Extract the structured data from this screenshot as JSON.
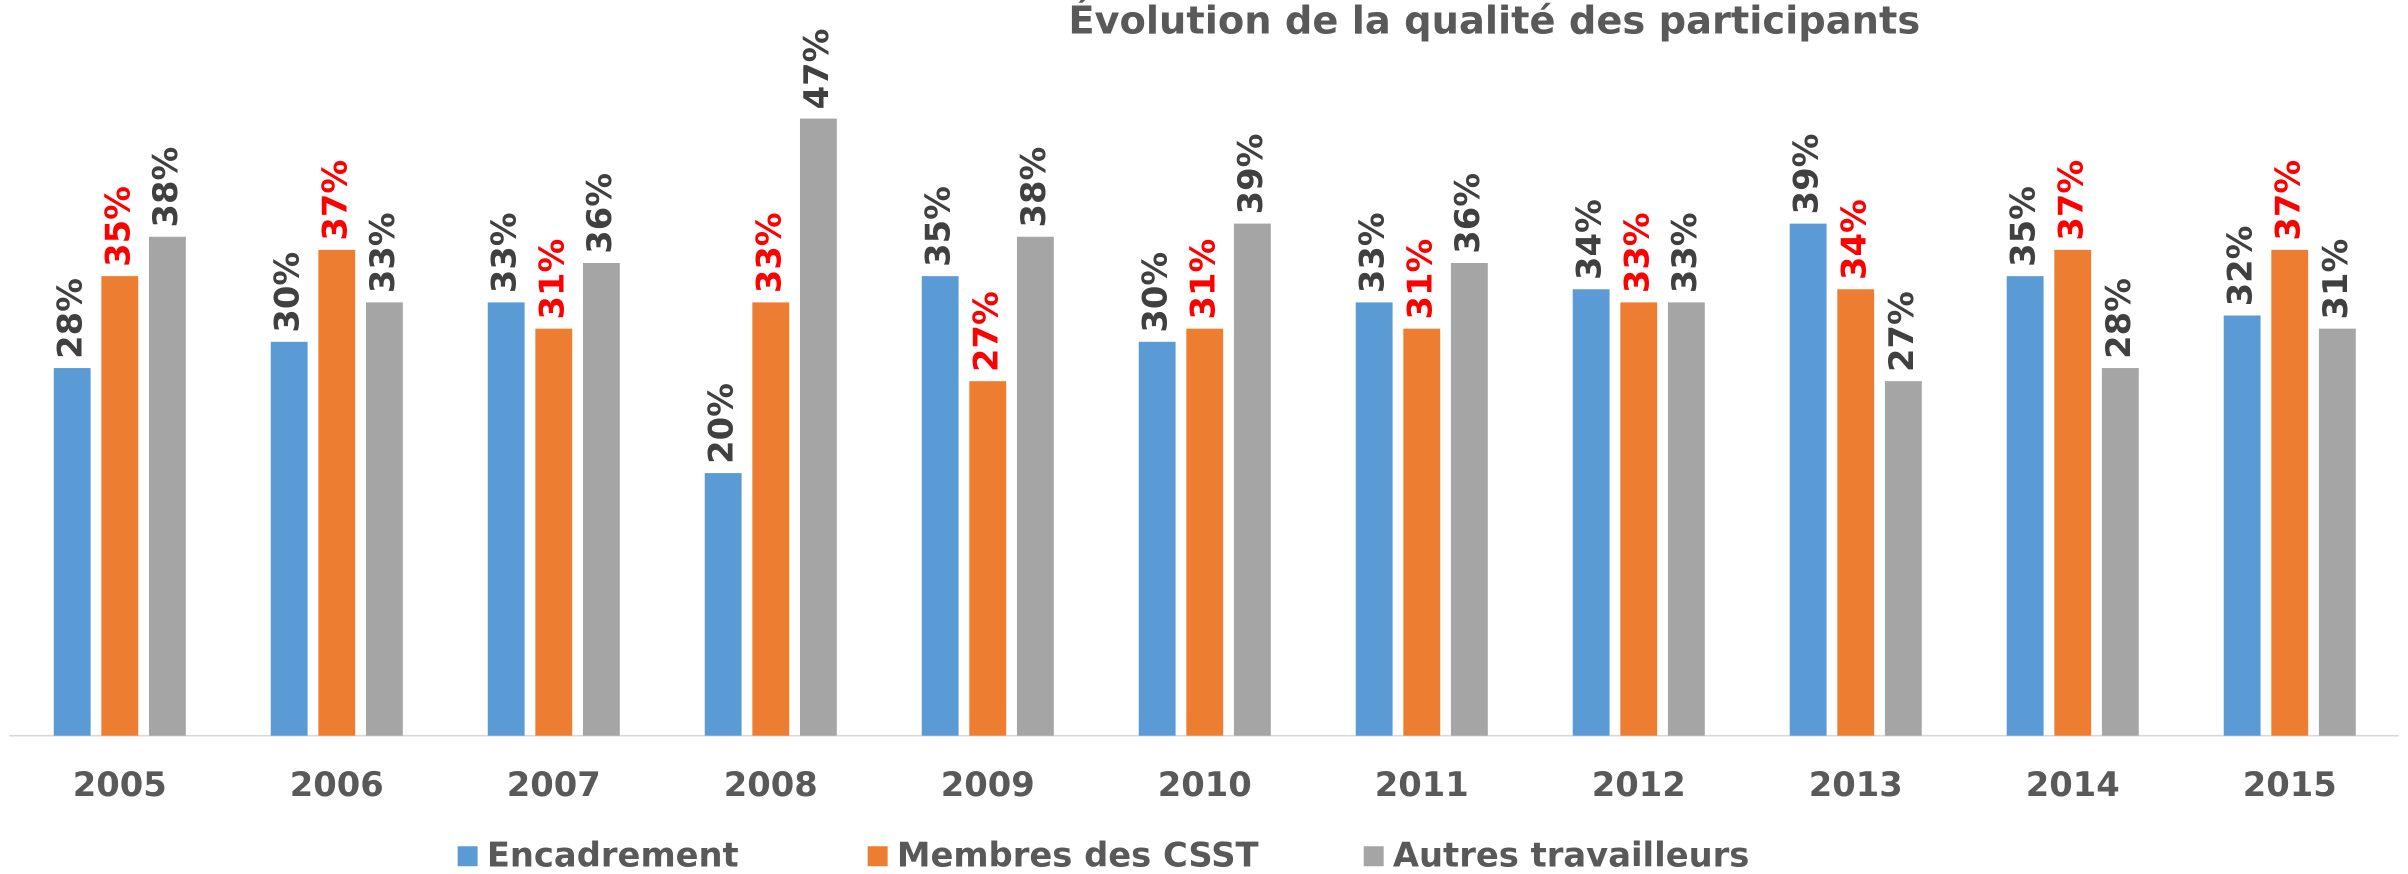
{
  "chart_data": {
    "type": "bar",
    "title": "Évolution de la qualité des participants",
    "categories": [
      "2005",
      "2006",
      "2007",
      "2008",
      "2009",
      "2010",
      "2011",
      "2012",
      "2013",
      "2014",
      "2015"
    ],
    "series": [
      {
        "name": "Encadrement",
        "color": "#5b9bd5",
        "label_color": "#404040",
        "values": [
          28,
          30,
          33,
          20,
          35,
          30,
          33,
          34,
          39,
          35,
          32
        ],
        "value_labels": [
          "28%",
          "30%",
          "33%",
          "20%",
          "35%",
          "30%",
          "33%",
          "34%",
          "39%",
          "35%",
          "32%"
        ]
      },
      {
        "name": "Membres des CSST",
        "color": "#ed7d31",
        "label_color": "#ff0000",
        "values": [
          35,
          37,
          31,
          33,
          27,
          31,
          31,
          33,
          34,
          37,
          37
        ],
        "value_labels": [
          "35%",
          "37%",
          "31%",
          "33%",
          "27%",
          "31%",
          "31%",
          "33%",
          "34%",
          "37%",
          "37%"
        ]
      },
      {
        "name": "Autres travailleurs",
        "color": "#a5a5a5",
        "label_color": "#404040",
        "values": [
          38,
          33,
          36,
          47,
          38,
          39,
          36,
          33,
          27,
          28,
          31
        ],
        "value_labels": [
          "38%",
          "33%",
          "36%",
          "47%",
          "38%",
          "39%",
          "36%",
          "33%",
          "27%",
          "28%",
          "31%"
        ]
      }
    ],
    "ylim": [
      0,
      50
    ],
    "legend": "bottom"
  }
}
